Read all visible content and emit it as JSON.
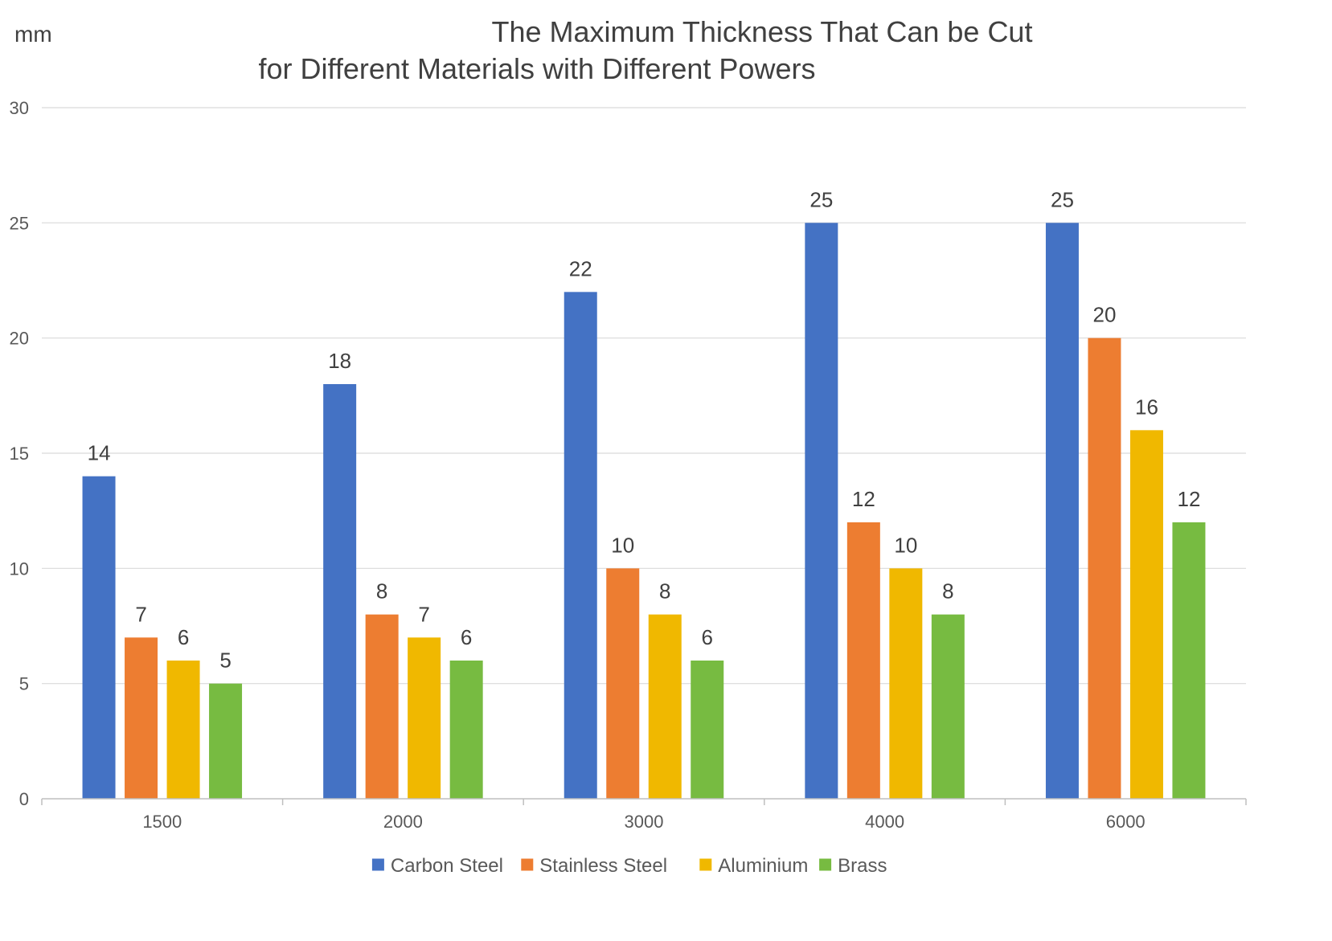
{
  "chart_data": {
    "type": "bar",
    "title": [
      "The Maximum Thickness That Can be Cut",
      "for Different Materials with Different Powers"
    ],
    "unit_label": "mm",
    "categories": [
      "1500",
      "2000",
      "3000",
      "4000",
      "6000"
    ],
    "series": [
      {
        "name": "Carbon Steel",
        "color": "#4472c4",
        "values": [
          14,
          18,
          22,
          25,
          25
        ]
      },
      {
        "name": "Stainless Steel",
        "color": "#ed7d31",
        "values": [
          7,
          8,
          10,
          12,
          20
        ]
      },
      {
        "name": "Aluminium",
        "color": "#f0b800",
        "values": [
          6,
          7,
          8,
          10,
          16
        ]
      },
      {
        "name": "Brass",
        "color": "#77bb41",
        "values": [
          5,
          6,
          6,
          8,
          12
        ]
      }
    ],
    "ylim": [
      0,
      30
    ],
    "yticks": [
      0,
      5,
      10,
      15,
      20,
      25,
      30
    ],
    "grid": true,
    "legend_position": "bottom"
  }
}
